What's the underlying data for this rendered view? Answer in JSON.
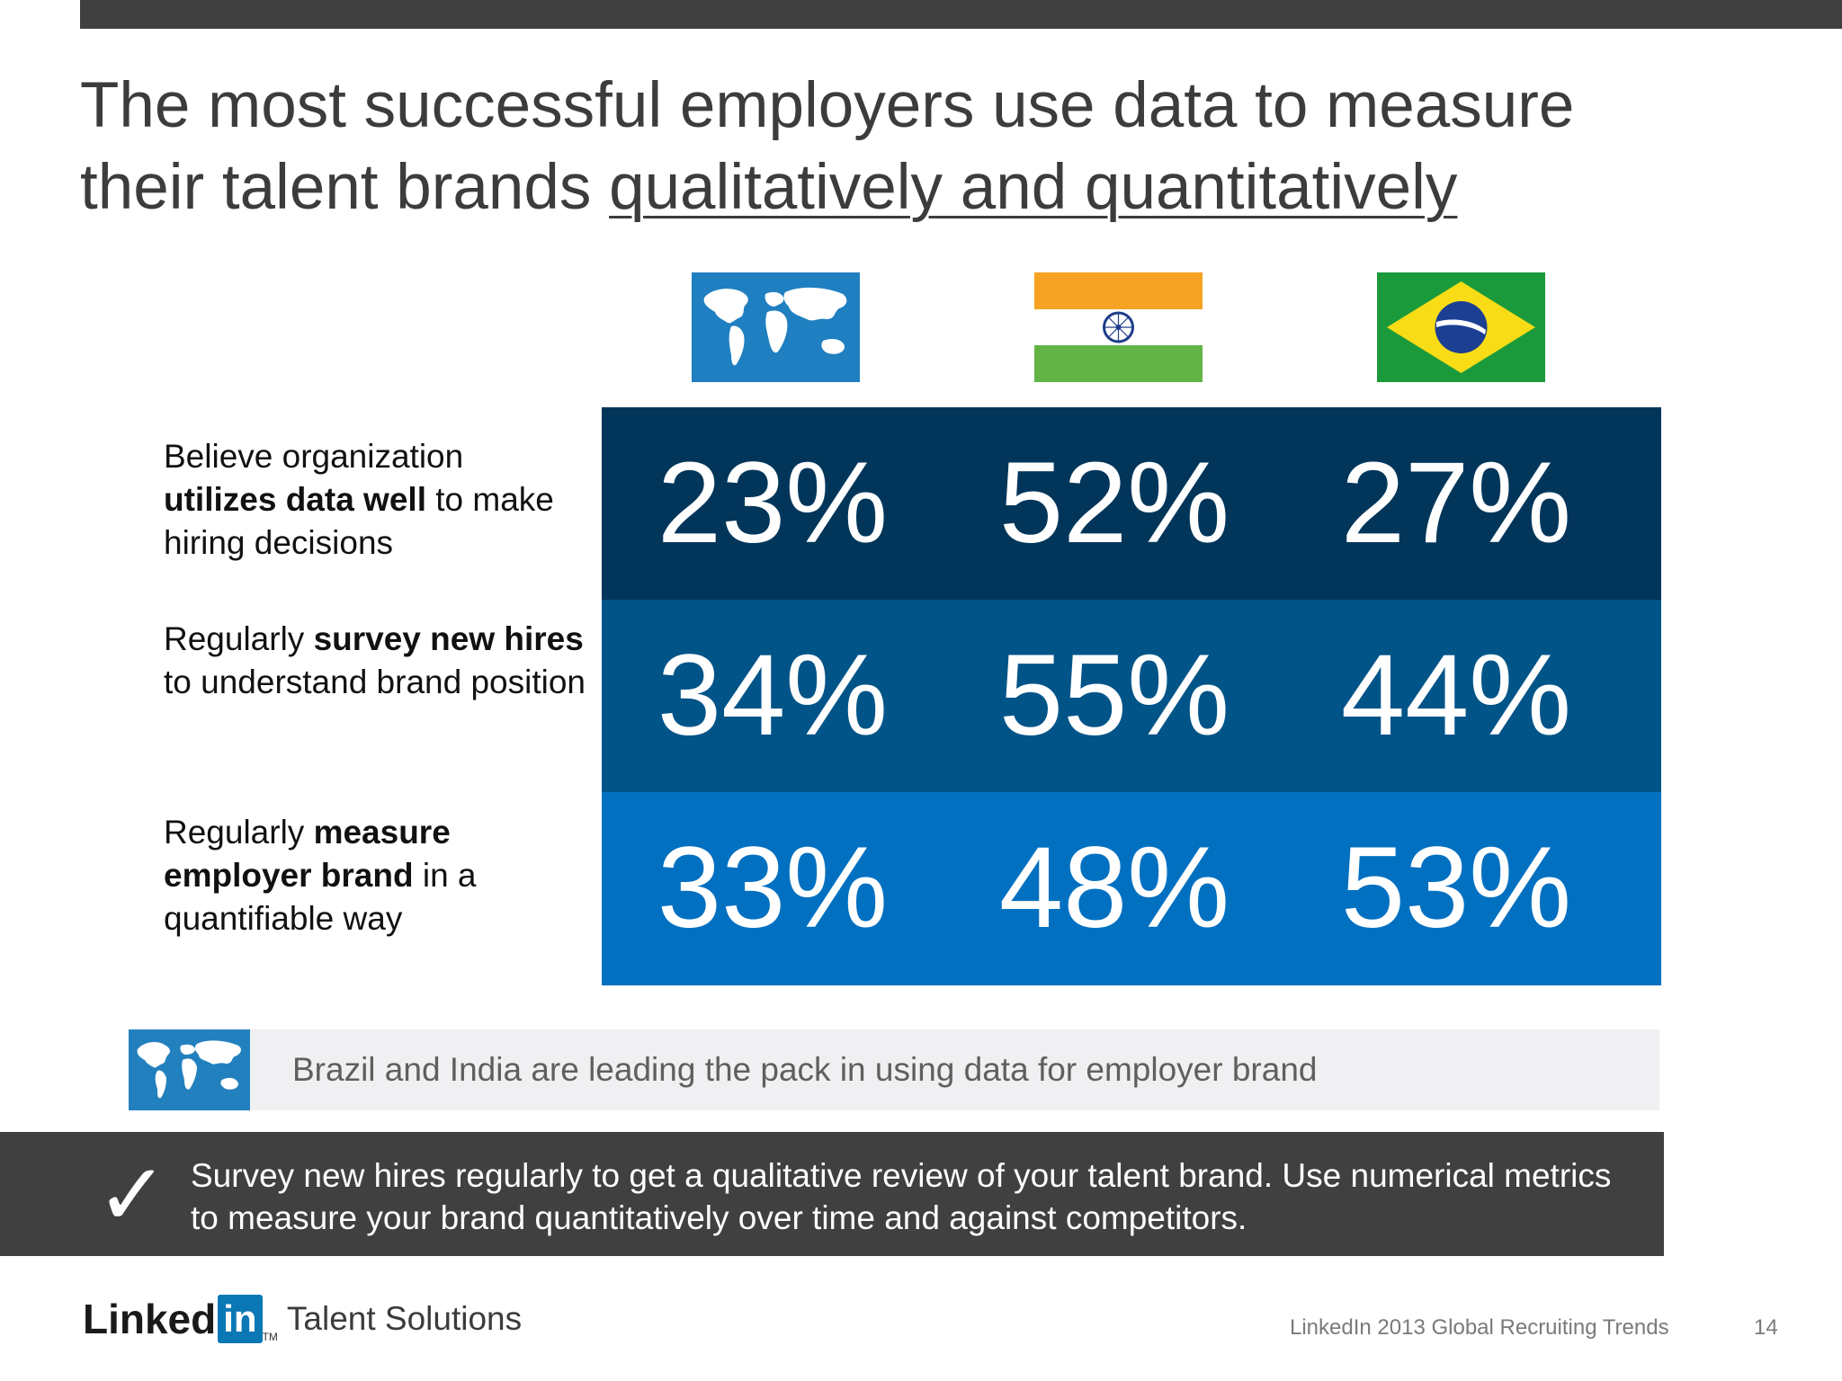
{
  "slide": {
    "title_line1": "The most successful employers use data to measure",
    "title_line2_plain": "their talent brands ",
    "title_line2_underlined": "qualitatively and quantitatively"
  },
  "flags": [
    {
      "icon": "world-map-icon"
    },
    {
      "icon": "india-flag-icon"
    },
    {
      "icon": "brazil-flag-icon"
    }
  ],
  "rows": [
    {
      "label_pre": "Believe organization",
      "label_bold": "utilizes data well",
      "label_post": "to make hiring decisions",
      "values": [
        "23%",
        "52%",
        "27%"
      ],
      "color": "#01365a"
    },
    {
      "label_pre": "Regularly",
      "label_bold": "survey new hires",
      "label_post": "to understand brand position",
      "values": [
        "34%",
        "55%",
        "44%"
      ],
      "color": "#005488"
    },
    {
      "label_pre": "Regularly",
      "label_bold": "measure employer brand",
      "label_post": "in a quantifiable way",
      "values": [
        "33%",
        "48%",
        "53%"
      ],
      "color": "#0170c1"
    }
  ],
  "callout": {
    "icon": "world-map-icon",
    "text": "Brazil and India are leading the pack in using data for employer brand"
  },
  "tip": {
    "icon": "checkmark-icon",
    "check_glyph": "✓",
    "text": "Survey new hires regularly to get a qualitative review of your talent brand. Use numerical metrics to measure your brand quantitatively over time and against competitors."
  },
  "footer": {
    "logo_linked": "Linked",
    "logo_in": "in",
    "logo_tm": "TM",
    "logo_product": "Talent Solutions",
    "source": "LinkedIn 2013 Global Recruiting Trends",
    "page": "14"
  }
}
